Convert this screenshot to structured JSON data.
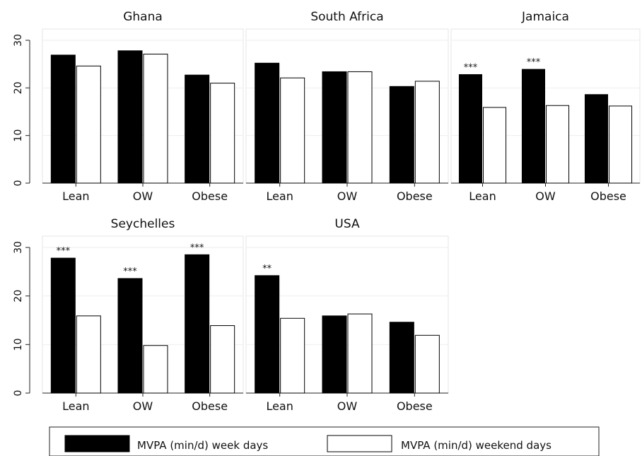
{
  "chart_data": {
    "type": "bar",
    "categories": [
      "Lean",
      "OW",
      "Obese"
    ],
    "series_names": [
      "MVPA (min/d) week days",
      "MVPA (min/d) weekend days"
    ],
    "colors": {
      "week": "#000000",
      "weekend": "#ffffff"
    },
    "ylim": [
      0,
      30
    ],
    "yticks": [
      "0",
      "10",
      "20",
      "30"
    ],
    "grid": true,
    "legend_position": "bottom",
    "panels": [
      {
        "title": "Ghana",
        "week": [
          26.9,
          27.8,
          22.7
        ],
        "weekend": [
          24.6,
          27.1,
          21.0
        ],
        "sig": [
          "",
          "",
          ""
        ]
      },
      {
        "title": "South Africa",
        "week": [
          25.2,
          23.4,
          20.3
        ],
        "weekend": [
          22.1,
          23.4,
          21.4
        ],
        "sig": [
          "",
          "",
          ""
        ]
      },
      {
        "title": "Jamaica",
        "week": [
          22.8,
          23.9,
          18.6
        ],
        "weekend": [
          15.9,
          16.3,
          16.2
        ],
        "sig": [
          "***",
          "***",
          ""
        ]
      },
      {
        "title": "Seychelles",
        "week": [
          27.8,
          23.6,
          28.5
        ],
        "weekend": [
          15.9,
          9.8,
          13.9
        ],
        "sig": [
          "***",
          "***",
          "***"
        ]
      },
      {
        "title": "USA",
        "week": [
          24.2,
          15.9,
          14.6
        ],
        "weekend": [
          15.4,
          16.3,
          11.9
        ],
        "sig": [
          "**",
          "",
          ""
        ]
      }
    ]
  }
}
